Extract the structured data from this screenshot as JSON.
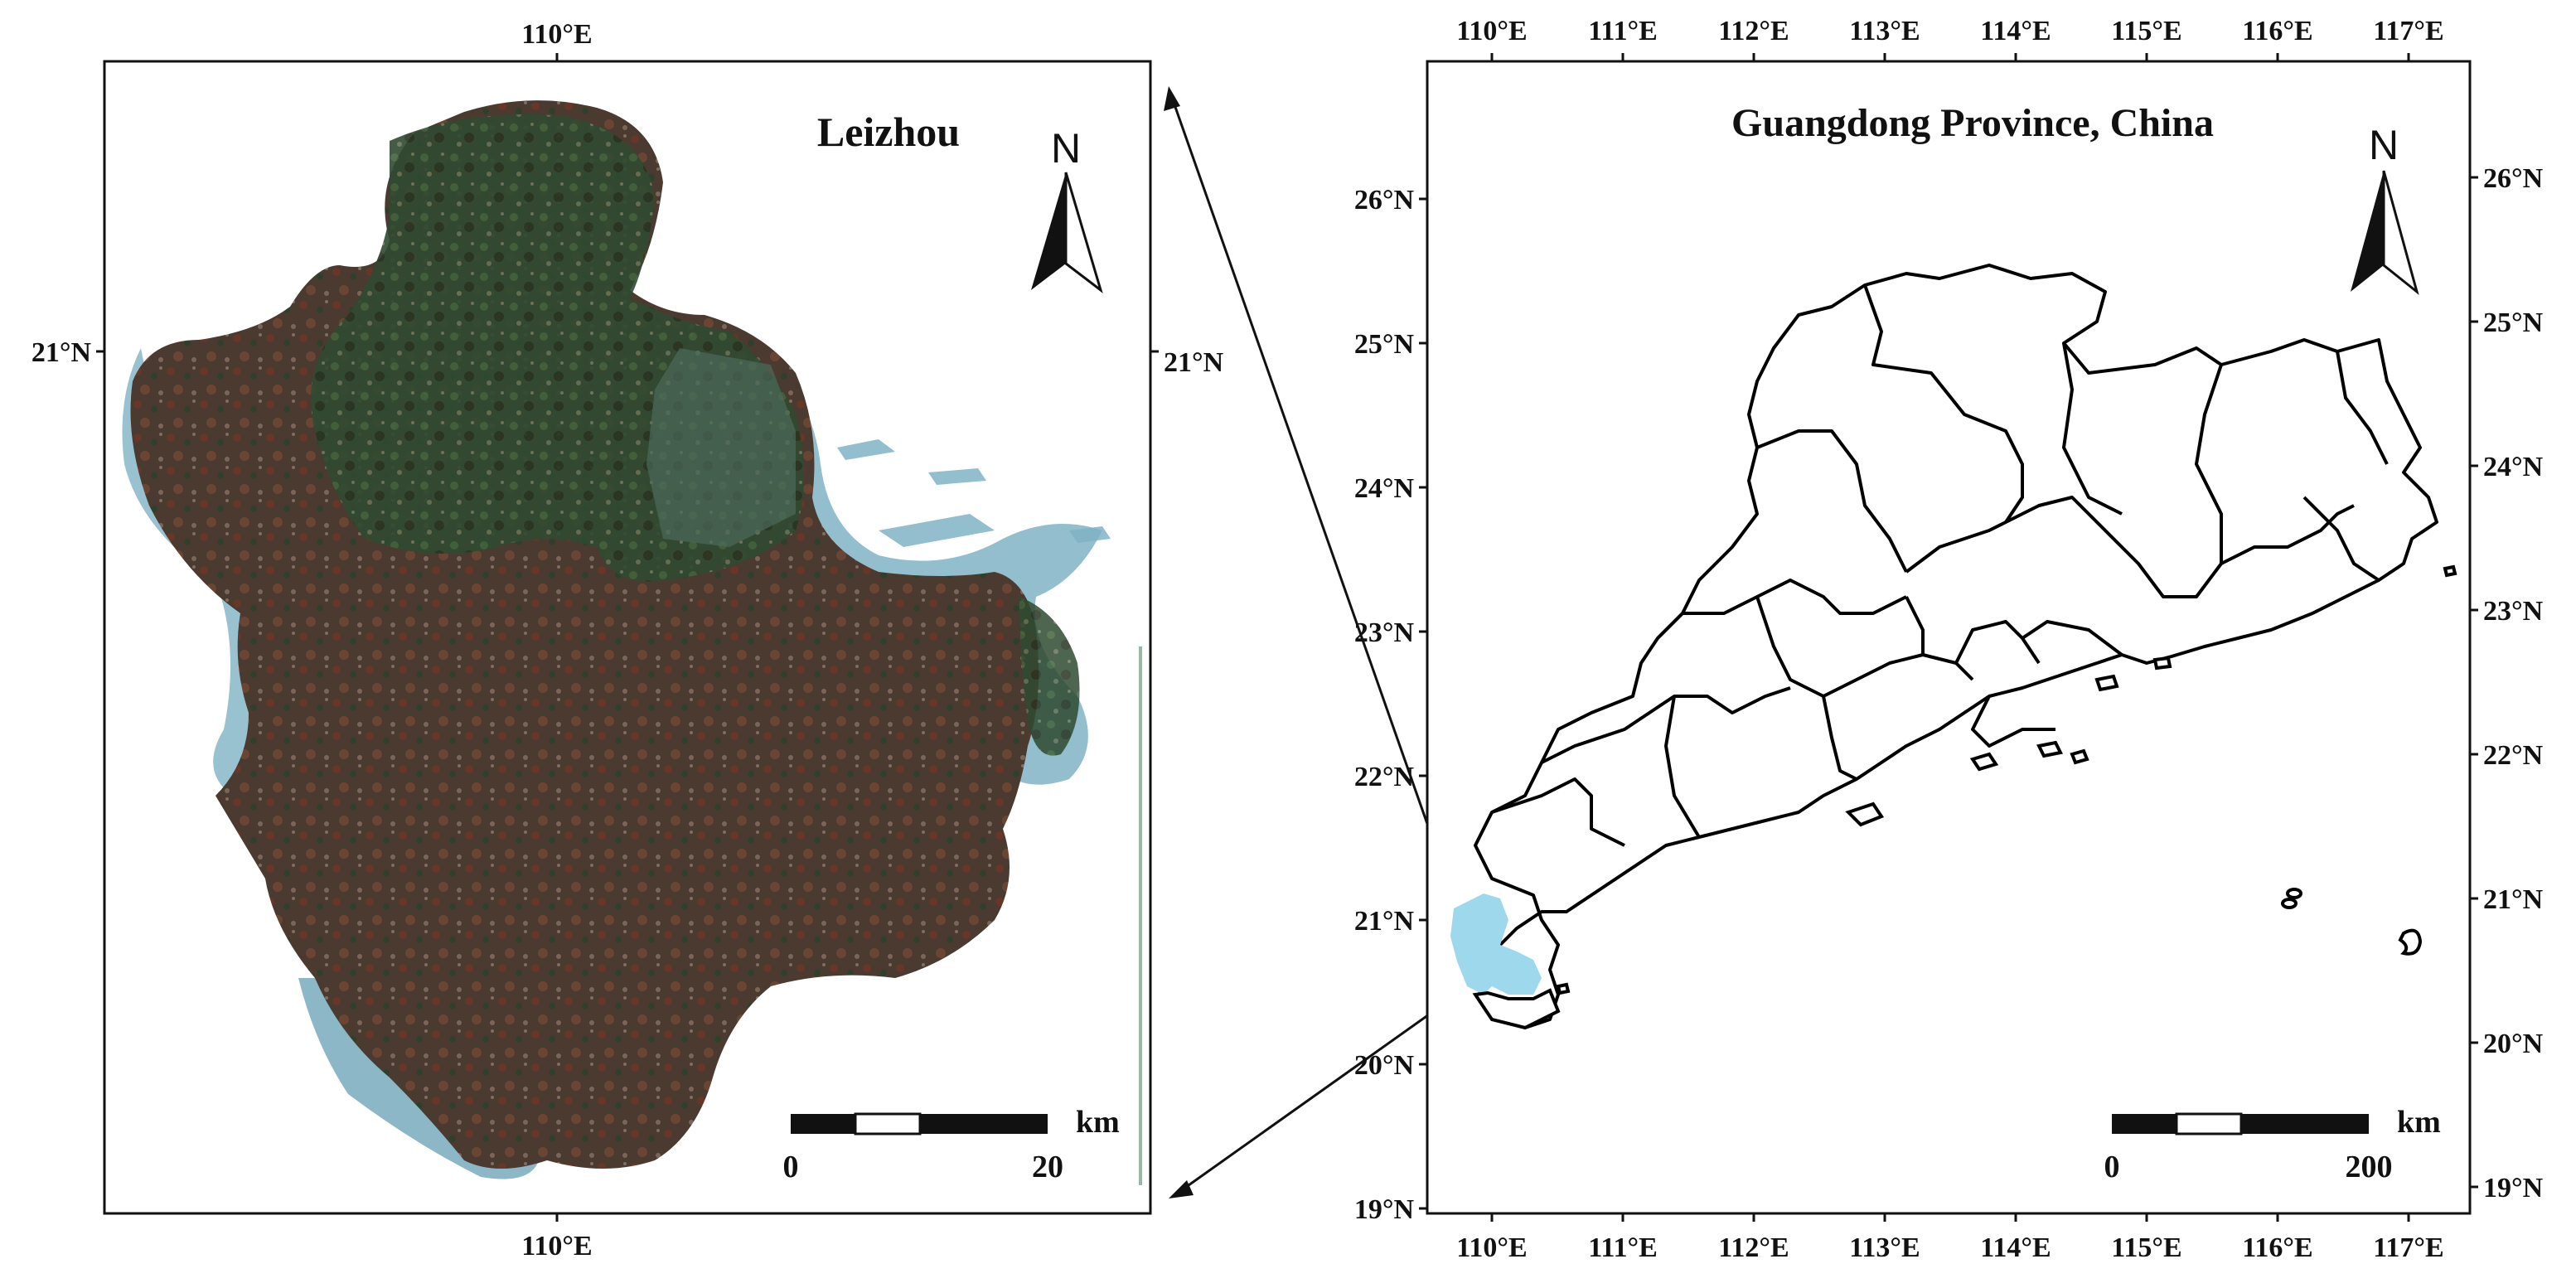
{
  "left_panel": {
    "title": "Leizhou",
    "north_label": "N",
    "top_lon_label": "110°E",
    "bottom_lon_label": "110°E",
    "left_lat_label": "21°N",
    "right_lat_label": "21°N",
    "scale_bar": {
      "unit": "km",
      "start_label": "0",
      "end_label": "20",
      "max_km": 20
    },
    "colors": {
      "land_dark": "#3a3a2c",
      "vegetation": "#3f5c3a",
      "cropland": "#6b3c2c",
      "water": "#7fb3c4"
    }
  },
  "right_panel": {
    "title": "Guangdong Province, China",
    "north_label": "N",
    "top_lon_labels": [
      "110°E",
      "111°E",
      "112°E",
      "113°E",
      "114°E",
      "115°E",
      "116°E",
      "117°E"
    ],
    "bottom_lon_labels": [
      "110°E",
      "111°E",
      "112°E",
      "113°E",
      "114°E",
      "115°E",
      "116°E",
      "117°E"
    ],
    "left_lat_labels": [
      "26°N",
      "25°N",
      "24°N",
      "23°N",
      "22°N",
      "21°N",
      "20°N",
      "19°N"
    ],
    "right_lat_labels": [
      "26°N",
      "25°N",
      "24°N",
      "23°N",
      "22°N",
      "21°N",
      "20°N",
      "19°N"
    ],
    "scale_bar": {
      "unit": "km",
      "start_label": "0",
      "end_label": "200",
      "max_km": 200
    },
    "highlight_region": "Leizhou",
    "highlight_color": "#9dd8ec",
    "outline_color": "#000000"
  }
}
